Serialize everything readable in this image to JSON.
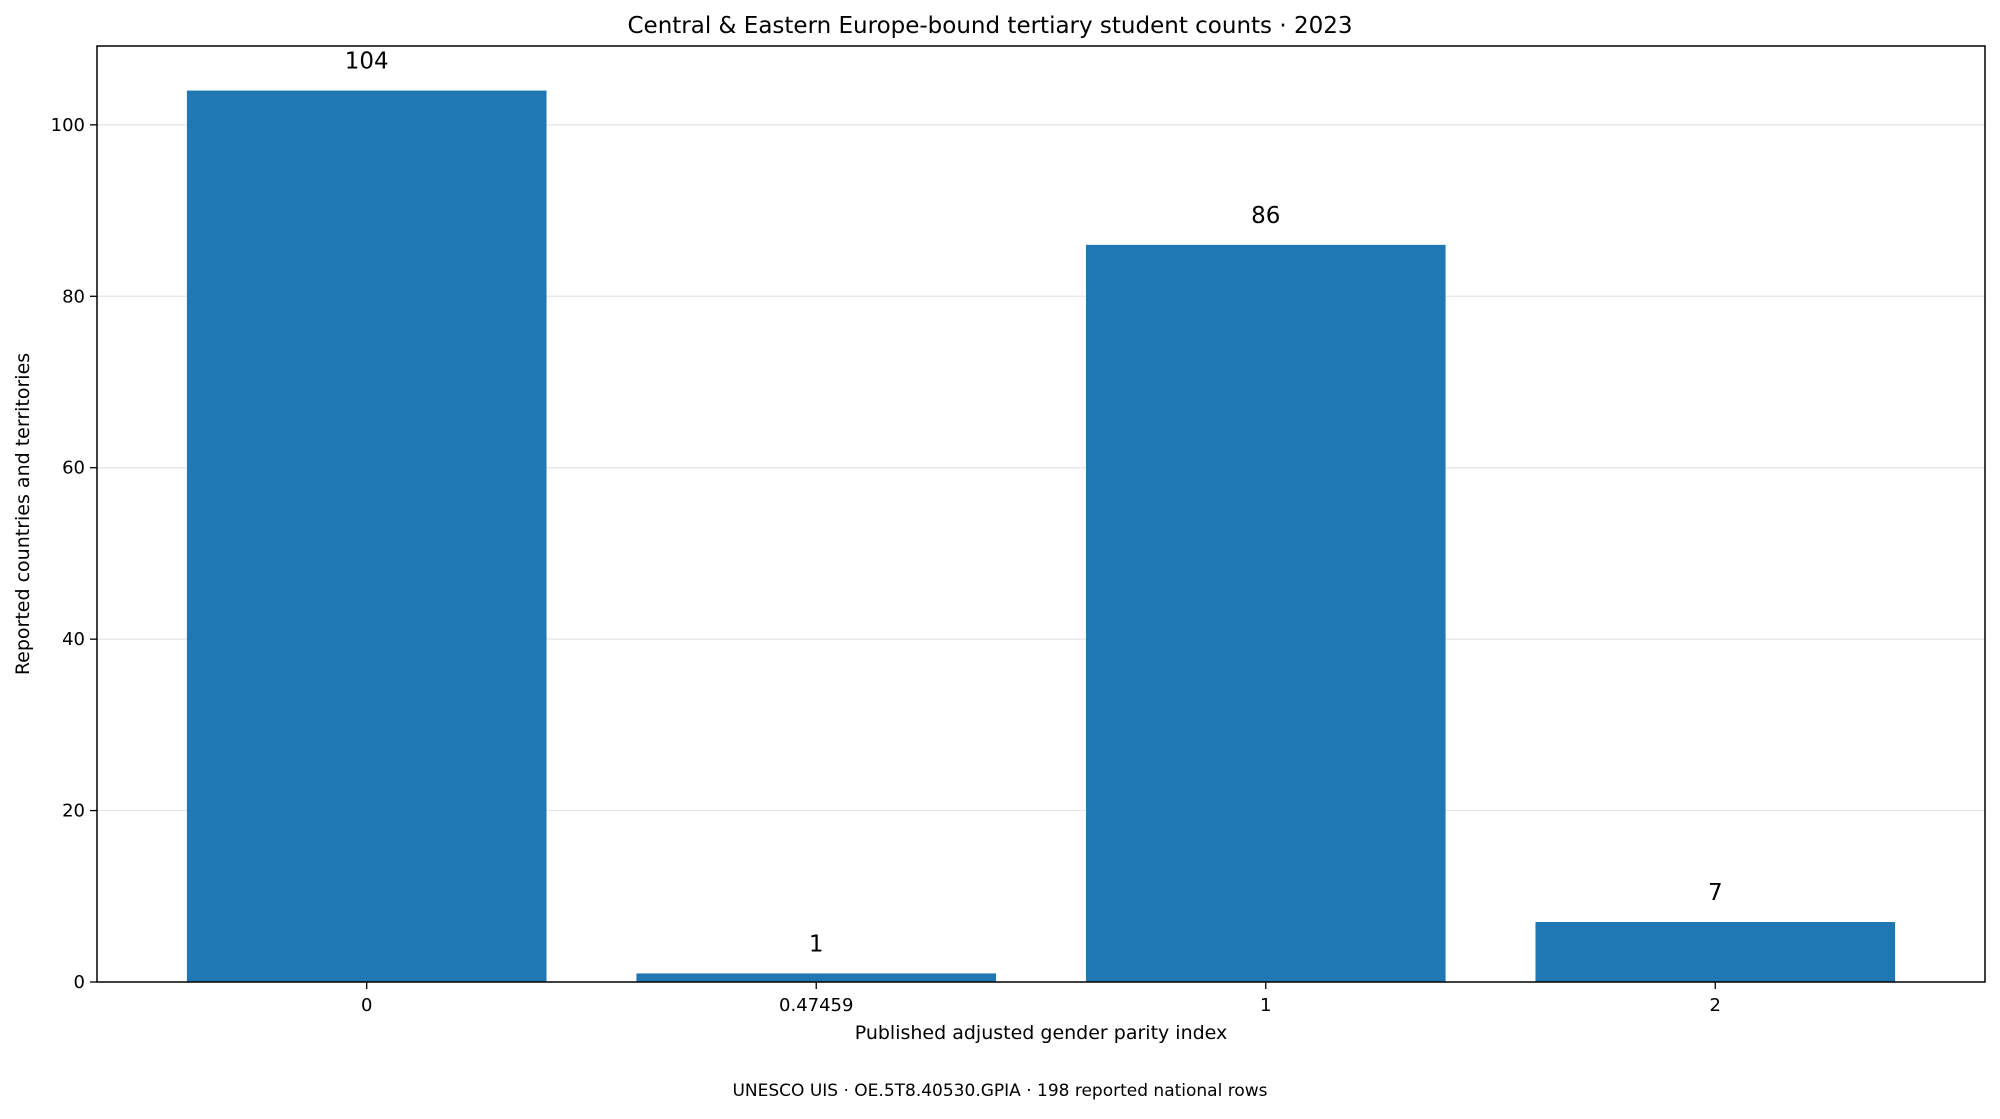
{
  "chart_data": {
    "type": "bar",
    "title": "Central & Eastern Europe-bound tertiary student counts · 2023",
    "xlabel": "Published adjusted gender parity index",
    "ylabel": "Reported countries and territories",
    "categories": [
      "0",
      "0.47459",
      "1",
      "2"
    ],
    "values": [
      104,
      1,
      86,
      7
    ],
    "data_labels": [
      "104",
      "1",
      "86",
      "7"
    ],
    "ylim": [
      0,
      109.2
    ],
    "yticks": [
      0,
      20,
      40,
      60,
      80,
      100
    ],
    "grid": "horizontal",
    "legend": "none",
    "bar_color": "#1f77b4",
    "grid_color": "#e6e6e6",
    "source_note": "UNESCO UIS · OE.5T8.40530.GPIA · 198 reported national rows"
  }
}
